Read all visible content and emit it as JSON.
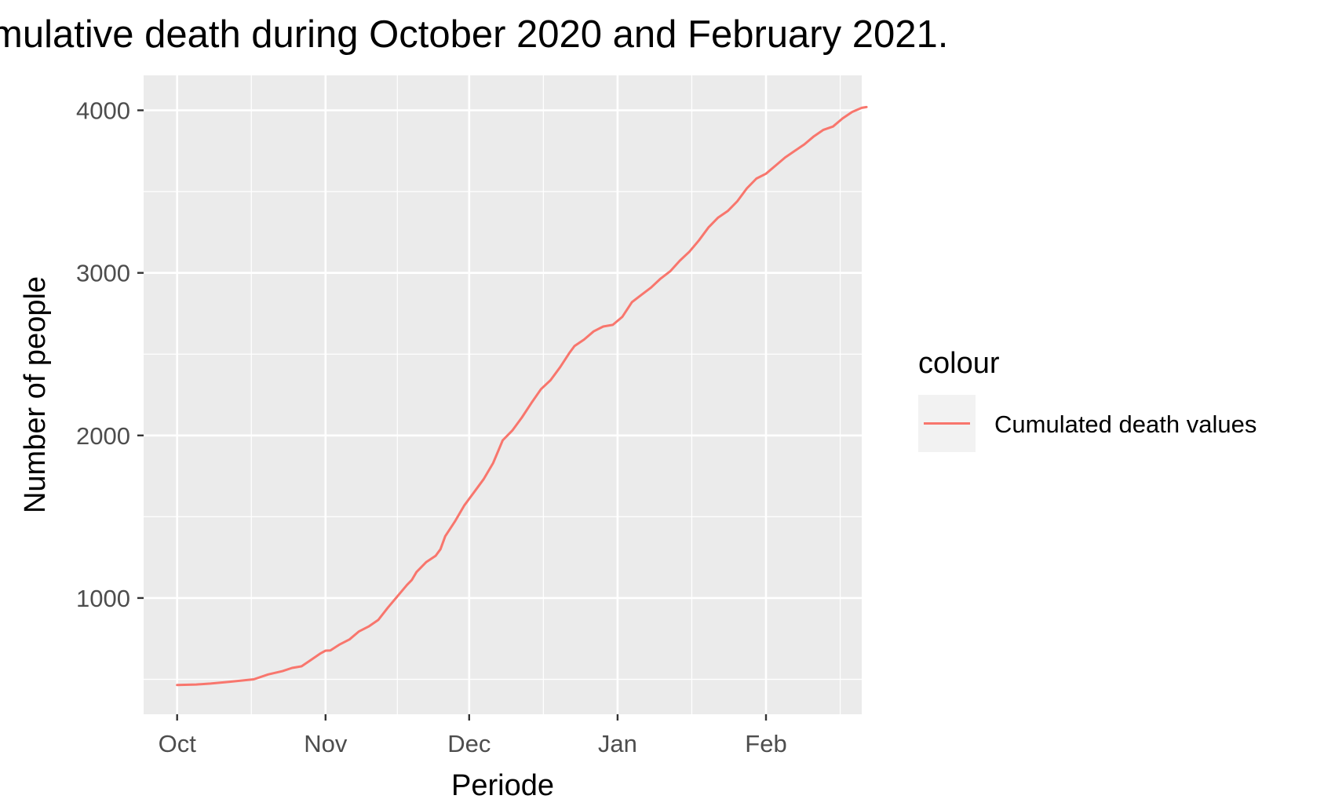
{
  "chart_data": {
    "type": "line",
    "title": "mulative death during October 2020 and February 2021.",
    "xlabel": "Periode",
    "ylabel": "Number of people",
    "x_tick_labels": [
      "Oct",
      "Nov",
      "Dec",
      "Jan",
      "Feb"
    ],
    "x_tick_dates": [
      "2020-10-01",
      "2020-11-01",
      "2020-12-01",
      "2021-01-01",
      "2021-02-01"
    ],
    "y_ticks": [
      1000,
      2000,
      3000,
      4000
    ],
    "xlim": [
      "2020-09-24",
      "2021-02-21"
    ],
    "ylim": [
      285,
      4215
    ],
    "grid": true,
    "legend": {
      "title": "colour",
      "position": "right",
      "entries": [
        {
          "label": "Cumulated death values",
          "color": "#F8766D"
        }
      ]
    },
    "series": [
      {
        "name": "Cumulated death values",
        "color": "#F8766D",
        "points": [
          [
            "2020-10-01",
            465
          ],
          [
            "2020-10-05",
            468
          ],
          [
            "2020-10-08",
            474
          ],
          [
            "2020-10-12",
            485
          ],
          [
            "2020-10-16",
            497
          ],
          [
            "2020-10-17",
            500
          ],
          [
            "2020-10-20",
            530
          ],
          [
            "2020-10-23",
            550
          ],
          [
            "2020-10-25",
            570
          ],
          [
            "2020-10-27",
            580
          ],
          [
            "2020-10-29",
            620
          ],
          [
            "2020-10-31",
            660
          ],
          [
            "2020-11-01",
            676
          ],
          [
            "2020-11-02",
            677
          ],
          [
            "2020-11-04",
            715
          ],
          [
            "2020-11-06",
            745
          ],
          [
            "2020-11-08",
            795
          ],
          [
            "2020-11-10",
            825
          ],
          [
            "2020-11-12",
            865
          ],
          [
            "2020-11-14",
            940
          ],
          [
            "2020-11-16",
            1010
          ],
          [
            "2020-11-18",
            1080
          ],
          [
            "2020-11-19",
            1110
          ],
          [
            "2020-11-20",
            1160
          ],
          [
            "2020-11-22",
            1220
          ],
          [
            "2020-11-24",
            1260
          ],
          [
            "2020-11-25",
            1300
          ],
          [
            "2020-11-26",
            1380
          ],
          [
            "2020-11-28",
            1470
          ],
          [
            "2020-11-30",
            1570
          ],
          [
            "2020-12-02",
            1650
          ],
          [
            "2020-12-04",
            1730
          ],
          [
            "2020-12-06",
            1830
          ],
          [
            "2020-12-08",
            1970
          ],
          [
            "2020-12-10",
            2030
          ],
          [
            "2020-12-12",
            2110
          ],
          [
            "2020-12-14",
            2200
          ],
          [
            "2020-12-16",
            2285
          ],
          [
            "2020-12-18",
            2340
          ],
          [
            "2020-12-20",
            2420
          ],
          [
            "2020-12-22",
            2510
          ],
          [
            "2020-12-23",
            2550
          ],
          [
            "2020-12-25",
            2590
          ],
          [
            "2020-12-27",
            2640
          ],
          [
            "2020-12-29",
            2670
          ],
          [
            "2020-12-31",
            2680
          ],
          [
            "2021-01-02",
            2730
          ],
          [
            "2021-01-04",
            2820
          ],
          [
            "2021-01-06",
            2865
          ],
          [
            "2021-01-08",
            2910
          ],
          [
            "2021-01-10",
            2965
          ],
          [
            "2021-01-12",
            3010
          ],
          [
            "2021-01-14",
            3075
          ],
          [
            "2021-01-16",
            3130
          ],
          [
            "2021-01-18",
            3200
          ],
          [
            "2021-01-20",
            3280
          ],
          [
            "2021-01-22",
            3340
          ],
          [
            "2021-01-24",
            3380
          ],
          [
            "2021-01-26",
            3440
          ],
          [
            "2021-01-28",
            3520
          ],
          [
            "2021-01-30",
            3580
          ],
          [
            "2021-02-01",
            3610
          ],
          [
            "2021-02-03",
            3660
          ],
          [
            "2021-02-05",
            3710
          ],
          [
            "2021-02-07",
            3750
          ],
          [
            "2021-02-09",
            3790
          ],
          [
            "2021-02-11",
            3840
          ],
          [
            "2021-02-13",
            3880
          ],
          [
            "2021-02-15",
            3900
          ],
          [
            "2021-02-17",
            3950
          ],
          [
            "2021-02-19",
            3990
          ],
          [
            "2021-02-21",
            4015
          ],
          [
            "2021-02-22",
            4020
          ]
        ]
      }
    ]
  }
}
